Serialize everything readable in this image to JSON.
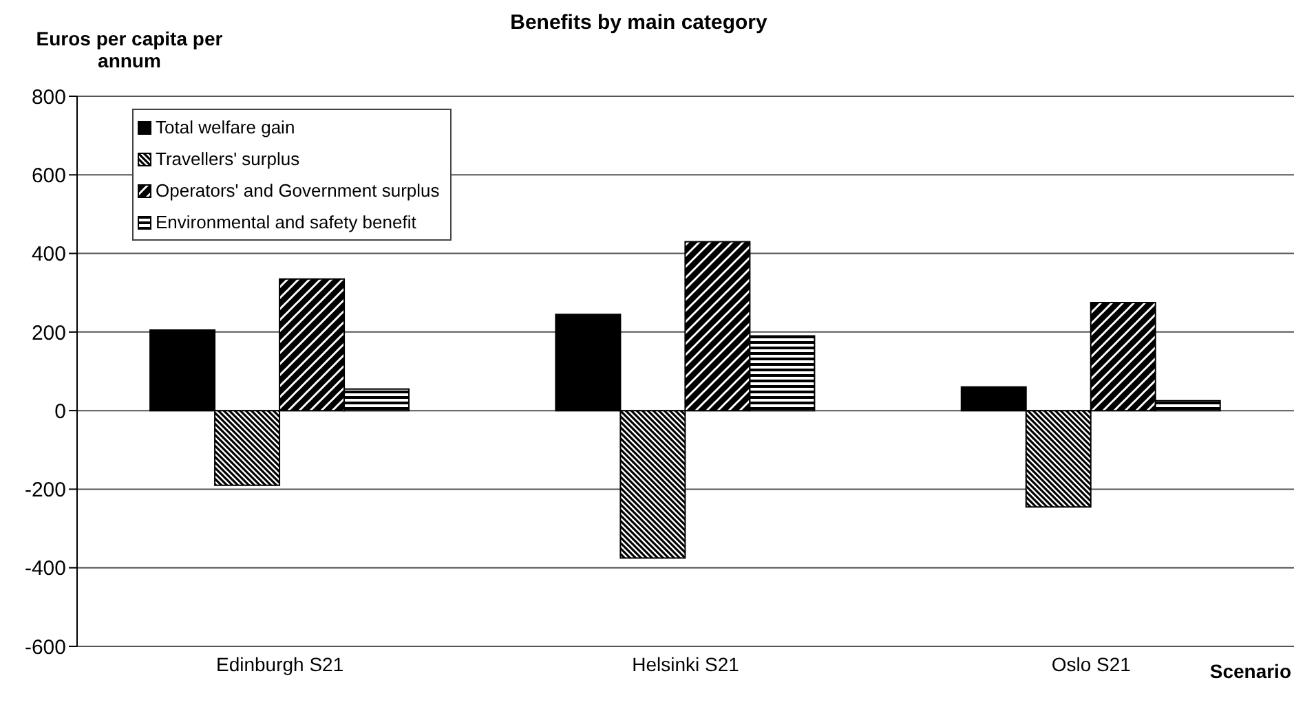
{
  "chart_data": {
    "type": "bar",
    "title": "Benefits by main category",
    "ylabel": "Euros per capita per annum",
    "xlabel": "Scenario",
    "categories": [
      "Edinburgh S21",
      "Helsinki S21",
      "Oslo S21"
    ],
    "series": [
      {
        "name": "Total welfare gain",
        "color": "#000000",
        "values": [
          205,
          245,
          60
        ]
      },
      {
        "name": "Travellers' surplus",
        "color": "#000000",
        "values": [
          -190,
          -375,
          -245
        ]
      },
      {
        "name": "Operators' and Government surplus",
        "color": "#000000",
        "values": [
          335,
          430,
          275
        ]
      },
      {
        "name": "Environmental and safety benefit",
        "color": "#000000",
        "values": [
          55,
          190,
          25
        ]
      }
    ],
    "ylim": [
      -600,
      800
    ],
    "yticks": [
      -600,
      -400,
      -200,
      0,
      200,
      400,
      600,
      800
    ],
    "grid": "y",
    "legend": "top left"
  }
}
